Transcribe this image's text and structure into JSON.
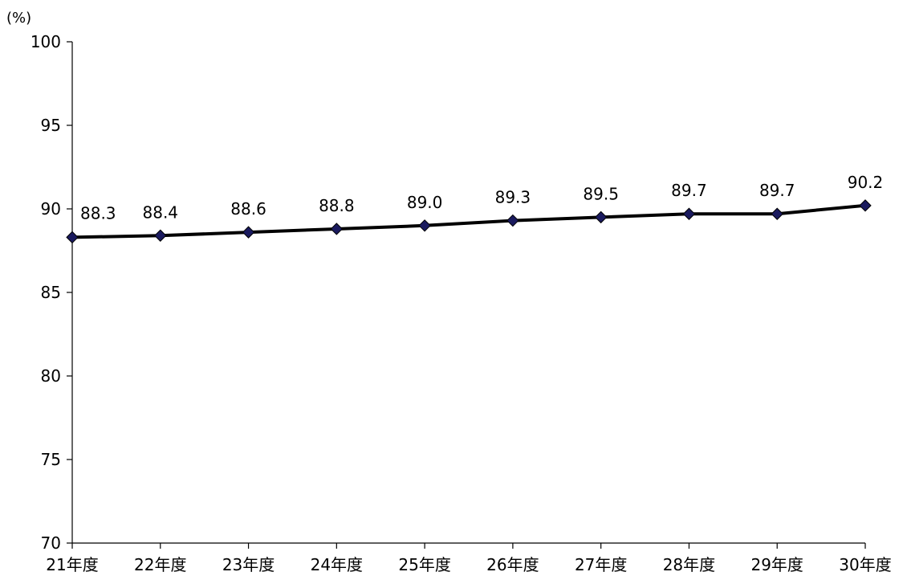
{
  "chart_data": {
    "type": "line",
    "title": "",
    "xlabel": "",
    "ylabel": "",
    "y_unit_label": "(%)",
    "categories": [
      "21年度",
      "22年度",
      "23年度",
      "24年度",
      "25年度",
      "26年度",
      "27年度",
      "28年度",
      "29年度",
      "30年度"
    ],
    "series": [
      {
        "values": [
          88.3,
          88.4,
          88.6,
          88.8,
          89.0,
          89.3,
          89.5,
          89.7,
          89.7,
          90.2
        ],
        "data_labels": [
          "88.3",
          "88.4",
          "88.6",
          "88.8",
          "89.0",
          "89.3",
          "89.5",
          "89.7",
          "89.7",
          "90.2"
        ],
        "line_color": "#000000",
        "marker": "diamond",
        "marker_color": "#1a1a5e"
      }
    ],
    "ylim": [
      70,
      100
    ],
    "yticks": [
      70,
      75,
      80,
      85,
      90,
      95,
      100
    ],
    "ytick_labels": [
      "70",
      "75",
      "80",
      "85",
      "90",
      "95",
      "100"
    ],
    "grid": false,
    "legend": "none"
  }
}
